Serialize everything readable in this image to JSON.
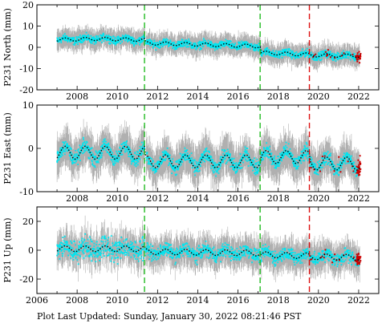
{
  "chart_data": [
    {
      "type": "scatter",
      "ylabel": "P231 North (mm)",
      "xlim": [
        2006,
        2023
      ],
      "ylim": [
        -20,
        20
      ],
      "x_ticks": [
        2008,
        2010,
        2012,
        2014,
        2016,
        2018,
        2020,
        2022
      ],
      "y_ticks": [
        -20,
        -10,
        0,
        10,
        20
      ],
      "grid": false,
      "vertical_lines": [
        {
          "x": 2011.35,
          "color": "#22bb22",
          "style": "dashed"
        },
        {
          "x": 2017.1,
          "color": "#22bb22",
          "style": "dashed"
        },
        {
          "x": 2019.55,
          "color": "#dd1111",
          "style": "dashed"
        }
      ],
      "model": {
        "x": [
          2007.0,
          2009.0,
          2011.35,
          2011.36,
          2017.1,
          2017.11,
          2019.55,
          2019.56,
          2022.0
        ],
        "y": [
          3.5,
          4.0,
          3.5,
          2.0,
          0.5,
          -2.5,
          -3.5,
          -3.7,
          -4.0
        ],
        "seasonal_amp": 0.8
      },
      "series": [
        {
          "role": "daily",
          "color": "#00e5f0",
          "scatter": 1.5
        },
        {
          "role": "error_bars",
          "color": "#b0b0b0",
          "halfwidth": 4.5
        },
        {
          "role": "model",
          "color": "#000000"
        },
        {
          "role": "rapid",
          "color": "#cc0000",
          "x_range": [
            2019.6,
            2022.1
          ]
        }
      ]
    },
    {
      "type": "scatter",
      "ylabel": "P231 East (mm)",
      "xlim": [
        2006,
        2023
      ],
      "ylim": [
        -10,
        10
      ],
      "x_ticks": [
        2008,
        2010,
        2012,
        2014,
        2016,
        2018,
        2020,
        2022
      ],
      "y_ticks": [
        -10,
        0,
        10
      ],
      "grid": false,
      "vertical_lines": [
        {
          "x": 2011.35,
          "color": "#22bb22",
          "style": "dashed"
        },
        {
          "x": 2017.1,
          "color": "#22bb22",
          "style": "dashed"
        },
        {
          "x": 2019.55,
          "color": "#dd1111",
          "style": "dashed"
        }
      ],
      "model": {
        "x": [
          2007.0,
          2011.35,
          2011.36,
          2017.1,
          2017.11,
          2019.55,
          2019.56,
          2022.0
        ],
        "y": [
          -1.0,
          -1.0,
          -3.0,
          -3.0,
          -2.0,
          -2.0,
          -3.5,
          -3.5
        ],
        "seasonal_amp": 1.5
      },
      "series": [
        {
          "role": "daily",
          "color": "#00e5f0",
          "scatter": 1.4
        },
        {
          "role": "error_bars",
          "color": "#b0b0b0",
          "halfwidth": 4.0
        },
        {
          "role": "model",
          "color": "#000000"
        },
        {
          "role": "rapid",
          "color": "#cc0000",
          "x_range": [
            2019.6,
            2022.1
          ]
        }
      ]
    },
    {
      "type": "scatter",
      "ylabel": "P231 Up (mm)",
      "xlim": [
        2006,
        2023
      ],
      "ylim": [
        -30,
        30
      ],
      "x_ticks": [
        2006,
        2008,
        2010,
        2012,
        2014,
        2016,
        2018,
        2020,
        2022
      ],
      "y_ticks": [
        -20,
        0,
        20
      ],
      "grid": false,
      "vertical_lines": [
        {
          "x": 2011.35,
          "color": "#22bb22",
          "style": "dashed"
        },
        {
          "x": 2017.1,
          "color": "#22bb22",
          "style": "dashed"
        },
        {
          "x": 2019.55,
          "color": "#dd1111",
          "style": "dashed"
        }
      ],
      "model": {
        "x": [
          2007.0,
          2011.35,
          2011.36,
          2017.1,
          2017.11,
          2019.55,
          2019.56,
          2022.0
        ],
        "y": [
          1.0,
          1.0,
          -1.0,
          -2.0,
          -3.0,
          -4.0,
          -4.5,
          -5.0
        ],
        "seasonal_amp": 2.0
      },
      "series": [
        {
          "role": "daily",
          "color": "#00e5f0",
          "scatter": 4.0
        },
        {
          "role": "error_bars",
          "color": "#b0b0b0",
          "halfwidth": 10.0
        },
        {
          "role": "model",
          "color": "#000000"
        },
        {
          "role": "rapid",
          "color": "#cc0000",
          "x_range": [
            2019.6,
            2022.1
          ]
        }
      ]
    }
  ],
  "footer": {
    "text": "Plot Last Updated:   Sunday, January 30, 2022 08:21:46 PST"
  }
}
